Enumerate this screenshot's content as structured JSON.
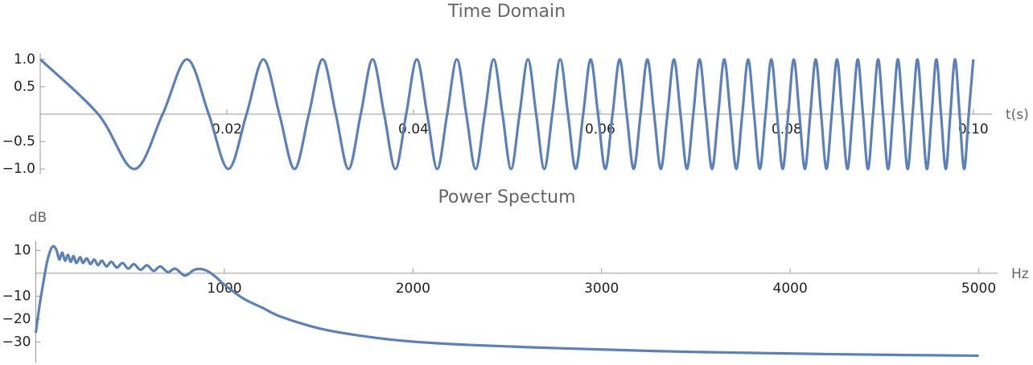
{
  "chart_data": [
    {
      "type": "line",
      "title": "Time Domain",
      "x_label": "t(s)",
      "color": "#5e81b5",
      "xlim": [
        0,
        0.102
      ],
      "ylim": [
        -1.1,
        1.1
      ],
      "xticks": [
        0.02,
        0.04,
        0.06,
        0.08,
        {
          "value": 0.1,
          "label": "0.10"
        }
      ],
      "yticks": [
        {
          "value": 1,
          "label": "1.0"
        },
        0.5,
        {
          "value": -0.5,
          "label": "−0.5"
        },
        {
          "value": -1,
          "label": "−1.0"
        }
      ],
      "x": [
        0,
        0.00621,
        0.01007,
        0.01312,
        0.01573,
        0.01806,
        0.02016,
        0.02211,
        0.02392,
        0.02563,
        0.02725,
        0.02879,
        0.03026,
        0.03168,
        0.03304,
        0.03435,
        0.03562,
        0.03686,
        0.03806,
        0.03922,
        0.04036,
        0.04147,
        0.04255,
        0.04361,
        0.04465,
        0.04566,
        0.04666,
        0.04764,
        0.04859,
        0.04954,
        0.05046,
        0.05137,
        0.05227,
        0.05315,
        0.05402,
        0.05488,
        0.05572,
        0.05656,
        0.05738,
        0.05819,
        0.05899,
        0.05978,
        0.06056,
        0.06134,
        0.0621,
        0.06285,
        0.0636,
        0.06434,
        0.06507,
        0.06579,
        0.06651,
        0.06722,
        0.06792,
        0.06862,
        0.06931,
        0.06999,
        0.07066,
        0.07133,
        0.072,
        0.07266,
        0.07331,
        0.07396,
        0.0746,
        0.07524,
        0.07587,
        0.0765,
        0.07712,
        0.07774,
        0.07835,
        0.07896,
        0.07957,
        0.08017,
        0.08076,
        0.08136,
        0.08195,
        0.08253,
        0.08311,
        0.08369,
        0.08426,
        0.08483,
        0.08539,
        0.08595,
        0.08651,
        0.08707,
        0.08762,
        0.08817,
        0.08871,
        0.08926,
        0.0898,
        0.09033,
        0.09087,
        0.0914,
        0.09192,
        0.09245,
        0.09297,
        0.09349,
        0.09401,
        0.09452,
        0.09503,
        0.09554,
        0.09604,
        0.09654,
        0.09705,
        0.09754,
        0.09804,
        0.09853,
        0.09902,
        0.09951,
        0.1
      ],
      "values": [
        1,
        0,
        -1,
        0,
        1,
        0,
        -1,
        0,
        1,
        0,
        -1,
        0,
        1,
        0,
        -1,
        0,
        1,
        0,
        -1,
        0,
        1,
        0,
        -1,
        0,
        1,
        0,
        -1,
        0,
        1,
        0,
        -1,
        0,
        1,
        0,
        -1,
        0,
        1,
        0,
        -1,
        0,
        1,
        0,
        -1,
        0,
        1,
        0,
        -1,
        0,
        1,
        0,
        -1,
        0,
        1,
        0,
        -1,
        0,
        1,
        0,
        -1,
        0,
        1,
        0,
        -1,
        0,
        1,
        0,
        -1,
        0,
        1,
        0,
        -1,
        0,
        1,
        0,
        -1,
        0,
        1,
        0,
        -1,
        0,
        1,
        0,
        -1,
        0,
        1,
        0,
        -1,
        0,
        1,
        0,
        -1,
        0,
        1,
        0,
        -1,
        0,
        1,
        0,
        -1,
        0,
        1,
        0,
        -1,
        0,
        1,
        0,
        -1,
        0,
        1
      ]
    },
    {
      "type": "line",
      "title": "Power Spectum",
      "x_label": "Hz",
      "y_label": "dB",
      "color": "#5e81b5",
      "xlim": [
        0,
        5100
      ],
      "ylim": [
        -39,
        14
      ],
      "xticks": [
        1000,
        2000,
        3000,
        4000,
        5000
      ],
      "yticks": [
        10,
        {
          "value": -10,
          "label": "−10"
        },
        {
          "value": -20,
          "label": "−20"
        },
        {
          "value": -30,
          "label": "−30"
        }
      ],
      "x": [
        0,
        20,
        40,
        60,
        80,
        95,
        110,
        125,
        140,
        155,
        170,
        185,
        200,
        215,
        235,
        250,
        270,
        290,
        310,
        330,
        350,
        375,
        400,
        430,
        460,
        490,
        520,
        555,
        590,
        625,
        660,
        700,
        740,
        790,
        840,
        880,
        920,
        960,
        1000,
        1100,
        1200,
        1300,
        1500,
        1700,
        1950,
        2300,
        2800,
        3300,
        3800,
        4400,
        5000
      ],
      "values": [
        -26,
        -14,
        -4,
        5,
        10.5,
        11.8,
        10,
        6,
        9,
        5.5,
        8,
        5,
        7.5,
        4.5,
        7,
        4.5,
        6.5,
        4,
        6,
        3.5,
        5.5,
        3,
        5,
        2.5,
        4.5,
        2,
        4,
        1.5,
        3.5,
        1,
        3,
        0.5,
        2,
        -1,
        1.5,
        1.8,
        0.5,
        -2,
        -5,
        -11,
        -15,
        -19,
        -24,
        -27,
        -29.5,
        -31.3,
        -32.8,
        -34,
        -34.8,
        -35.5,
        -36
      ]
    }
  ]
}
